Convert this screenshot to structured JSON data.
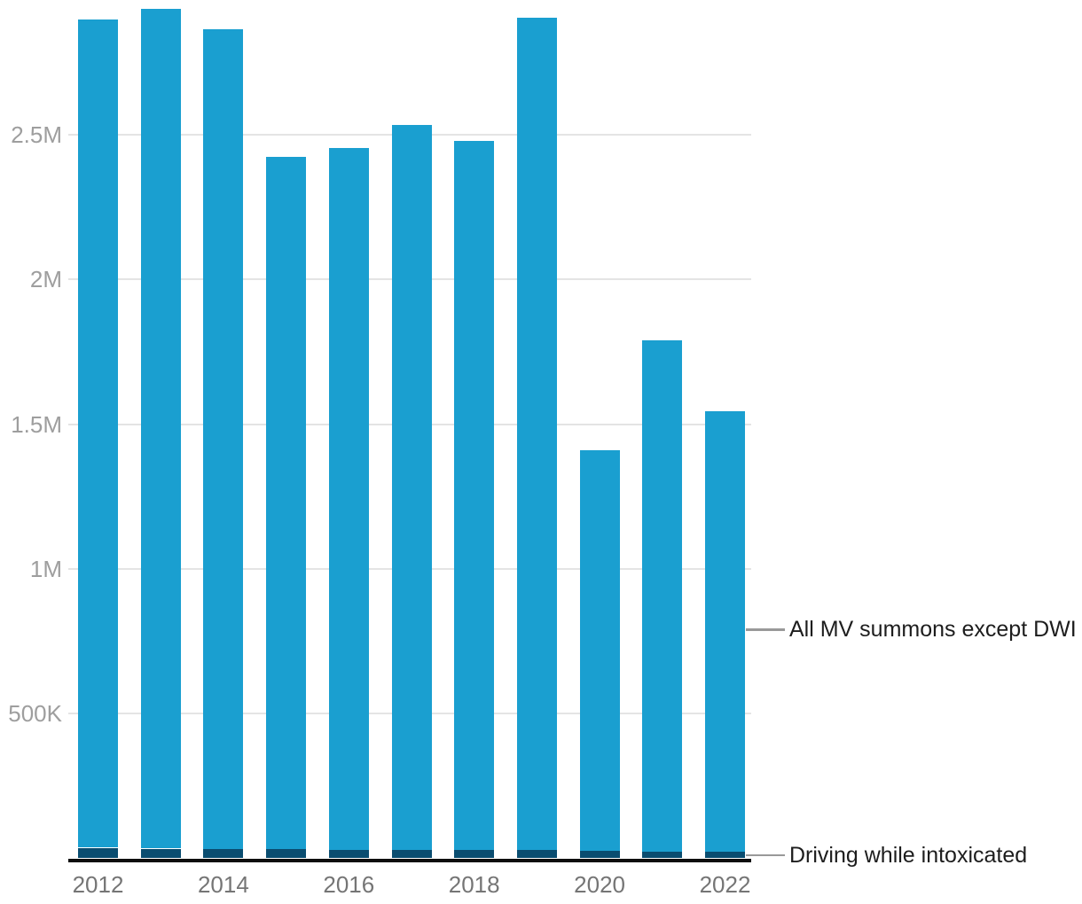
{
  "chart_data": {
    "type": "bar",
    "stacked": true,
    "title": "",
    "xlabel": "",
    "ylabel": "",
    "categories": [
      "2012",
      "2013",
      "2014",
      "2015",
      "2016",
      "2017",
      "2018",
      "2019",
      "2020",
      "2021",
      "2022"
    ],
    "series": [
      {
        "name": "Driving while intoxicated",
        "values_millions": [
          0.035,
          0.032,
          0.031,
          0.029,
          0.027,
          0.026,
          0.027,
          0.027,
          0.023,
          0.021,
          0.021
        ]
      },
      {
        "name": "All MV summons except DWI",
        "values_millions": [
          2.865,
          2.903,
          2.834,
          2.396,
          2.428,
          2.509,
          2.453,
          2.878,
          1.387,
          1.769,
          1.524
        ]
      }
    ],
    "totals_millions": [
      2.9,
      2.935,
      2.865,
      2.425,
      2.455,
      2.535,
      2.48,
      2.905,
      1.41,
      1.79,
      1.545
    ],
    "yticks": [
      {
        "label": "500K",
        "value": 0.5
      },
      {
        "label": "1M",
        "value": 1.0
      },
      {
        "label": "1.5M",
        "value": 1.5
      },
      {
        "label": "2M",
        "value": 2.0
      },
      {
        "label": "2.5M",
        "value": 2.5
      }
    ],
    "xticks": [
      {
        "label": "2012",
        "index": 0
      },
      {
        "label": "2014",
        "index": 2
      },
      {
        "label": "2016",
        "index": 4
      },
      {
        "label": "2018",
        "index": 6
      },
      {
        "label": "2020",
        "index": 8
      },
      {
        "label": "2022",
        "index": 10
      }
    ],
    "ylim": [
      0,
      3.0
    ],
    "grid": "horizontal",
    "legend_position": "right-annotations",
    "annotations": [
      {
        "label": "All MV summons except DWI",
        "series": "All MV summons except DWI",
        "y_value_millions": 0.79
      },
      {
        "label": "Driving while intoxicated",
        "series": "Driving while intoxicated",
        "y_value_millions": 0.01
      }
    ]
  },
  "colors": {
    "all_mv_bar": "#1A9FD0",
    "dwi_bar": "#0A4D70",
    "axis_line": "#0d0d0d",
    "gridline": "#e4e4e4",
    "ytick_text": "#9e9e9e",
    "xtick_text": "#757575",
    "annotation_text": "#1d1d1d",
    "leader_line": "#999999"
  }
}
